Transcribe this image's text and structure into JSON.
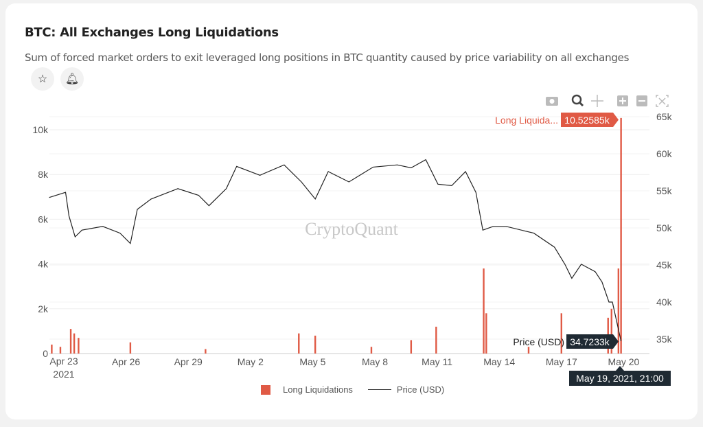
{
  "header": {
    "title": "BTC: All Exchanges Long Liquidations",
    "subtitle": "Sum of forced market orders to exit leveraged long positions in BTC quantity caused by price variability on all exchanges"
  },
  "buttons": {
    "favorite_icon": "star-icon",
    "alert_icon": "bell-icon"
  },
  "toolbar": [
    "camera-icon",
    "zoom-icon",
    "pan-icon",
    "zoom-in-icon",
    "zoom-out-icon",
    "autoscale-icon"
  ],
  "watermark": "CryptoQuant",
  "colors": {
    "liquidations": "#e05a45",
    "price": "#222222",
    "tooltip_bg": "#1f2a33"
  },
  "chart_data": {
    "type": "bar+line",
    "x_ticks": [
      "Apr 23\n2021",
      "Apr 26",
      "Apr 29",
      "May 2",
      "May 5",
      "May 8",
      "May 11",
      "May 14",
      "May 17",
      "May 20"
    ],
    "x_tick_labels": [
      "Apr 23",
      "Apr 26",
      "Apr 29",
      "May 2",
      "May 5",
      "May 8",
      "May 11",
      "May 14",
      "May 17",
      "May 20"
    ],
    "x_year_label": "2021",
    "y_left": {
      "ticks": [
        "0",
        "2k",
        "4k",
        "6k",
        "8k",
        "10k"
      ],
      "range": [
        0,
        10500
      ]
    },
    "y_right": {
      "ticks": [
        "35k",
        "40k",
        "45k",
        "50k",
        "55k",
        "60k",
        "65k"
      ],
      "range": [
        33000,
        65000
      ]
    },
    "grid": true,
    "legend_position": "bottom",
    "series": [
      {
        "name": "Long Liquidations",
        "axis": "left",
        "type": "bar",
        "points": [
          [
            "2021-04-22T10:00",
            400
          ],
          [
            "2021-04-22T20:00",
            300
          ],
          [
            "2021-04-23T08:00",
            1100
          ],
          [
            "2021-04-23T12:00",
            900
          ],
          [
            "2021-04-23T17:00",
            700
          ],
          [
            "2021-04-26T05:00",
            500
          ],
          [
            "2021-04-29T20:00",
            200
          ],
          [
            "2021-05-04T08:00",
            900
          ],
          [
            "2021-05-05T03:00",
            800
          ],
          [
            "2021-05-07T20:00",
            300
          ],
          [
            "2021-05-09T18:00",
            600
          ],
          [
            "2021-05-10T23:00",
            1200
          ],
          [
            "2021-05-13T06:00",
            3800
          ],
          [
            "2021-05-13T09:00",
            1800
          ],
          [
            "2021-05-15T10:00",
            300
          ],
          [
            "2021-05-17T00:00",
            1800
          ],
          [
            "2021-05-19T06:00",
            1600
          ],
          [
            "2021-05-19T10:00",
            2000
          ],
          [
            "2021-05-19T18:00",
            3800
          ],
          [
            "2021-05-19T21:00",
            10525.85
          ]
        ]
      },
      {
        "name": "Price (USD)",
        "axis": "right",
        "type": "line",
        "points": [
          [
            "2021-04-22T07:00",
            54100
          ],
          [
            "2021-04-23T02:00",
            54800
          ],
          [
            "2021-04-23T06:00",
            51600
          ],
          [
            "2021-04-23T13:00",
            48800
          ],
          [
            "2021-04-23T21:00",
            49700
          ],
          [
            "2021-04-24T21:00",
            50200
          ],
          [
            "2021-04-25T17:00",
            49300
          ],
          [
            "2021-04-26T05:00",
            47900
          ],
          [
            "2021-04-26T13:00",
            52500
          ],
          [
            "2021-04-27T05:00",
            53900
          ],
          [
            "2021-04-28T12:00",
            55300
          ],
          [
            "2021-04-29T12:00",
            54400
          ],
          [
            "2021-04-30T00:00",
            53000
          ],
          [
            "2021-04-30T20:00",
            55300
          ],
          [
            "2021-05-01T08:00",
            58300
          ],
          [
            "2021-05-02T11:00",
            57100
          ],
          [
            "2021-05-03T15:00",
            58500
          ],
          [
            "2021-05-04T11:00",
            56200
          ],
          [
            "2021-05-05T03:00",
            53900
          ],
          [
            "2021-05-05T18:00",
            57600
          ],
          [
            "2021-05-06T18:00",
            56200
          ],
          [
            "2021-05-07T22:00",
            58200
          ],
          [
            "2021-05-09T02:00",
            58500
          ],
          [
            "2021-05-09T18:00",
            58100
          ],
          [
            "2021-05-10T11:00",
            59200
          ],
          [
            "2021-05-11T01:00",
            55900
          ],
          [
            "2021-05-11T17:00",
            55700
          ],
          [
            "2021-05-12T09:00",
            57600
          ],
          [
            "2021-05-12T21:00",
            54800
          ],
          [
            "2021-05-13T05:00",
            49700
          ],
          [
            "2021-05-13T17:00",
            50200
          ],
          [
            "2021-05-14T08:00",
            50200
          ],
          [
            "2021-05-15T16:00",
            49300
          ],
          [
            "2021-05-16T16:00",
            47400
          ],
          [
            "2021-05-17T04:00",
            45100
          ],
          [
            "2021-05-17T12:00",
            43200
          ],
          [
            "2021-05-17T23:00",
            45100
          ],
          [
            "2021-05-18T15:00",
            44100
          ],
          [
            "2021-05-18T23:00",
            42700
          ],
          [
            "2021-05-19T07:00",
            40000
          ],
          [
            "2021-05-19T11:00",
            40000
          ],
          [
            "2021-05-19T21:00",
            34723.3
          ]
        ]
      }
    ],
    "tooltips": {
      "liquidations_label": "Long Liquida...",
      "liquidations_value": "10.52585k",
      "price_label": "Price (USD)",
      "price_value": "34.7233k",
      "x_value": "May 19, 2021, 21:00"
    }
  },
  "legend": {
    "liquidations": "Long Liquidations",
    "price": "Price (USD)"
  }
}
